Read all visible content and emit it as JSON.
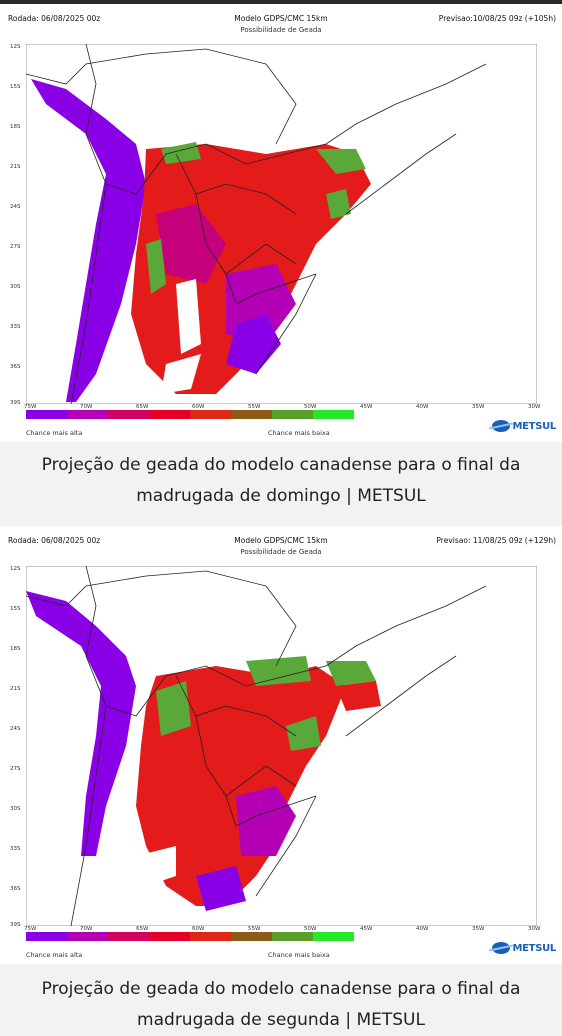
{
  "colors": {
    "legend": [
      "#8a00e6",
      "#b400b4",
      "#d2005f",
      "#e60028",
      "#dc2814",
      "#8c5a14",
      "#5aa028",
      "#28e628"
    ],
    "purple": "#8a00e6",
    "magenta": "#c4007a",
    "red": "#e41b1b",
    "green": "#5aa83a",
    "brand": "#1a5fb4"
  },
  "maps": [
    {
      "run": "Rodada: 06/08/2025 00z",
      "model": "Modelo GDPS/CMC 15km",
      "forecast": "Previsao:10/08/25 09z (+105h)",
      "subtitle": "Possibilidade de Geada",
      "y_ticks": [
        "12S",
        "15S",
        "18S",
        "21S",
        "24S",
        "27S",
        "30S",
        "33S",
        "36S",
        "39S"
      ],
      "x_ticks": [
        "75W",
        "70W",
        "65W",
        "60W",
        "55W",
        "50W",
        "45W",
        "40W",
        "35W",
        "30W"
      ],
      "legend_left": "Chance mais alta",
      "legend_right": "Chance mais baixa",
      "logo": "METSUL",
      "caption": "Projeção de geada do modelo canadense para o final da madrugada de domingo | METSUL"
    },
    {
      "run": "Rodada: 06/08/2025 00z",
      "model": "Modelo GDPS/CMC 15km",
      "forecast": "Previsao: 11/08/25 09z (+129h)",
      "subtitle": "Possibilidade de Geada",
      "y_ticks": [
        "12S",
        "15S",
        "18S",
        "21S",
        "24S",
        "27S",
        "30S",
        "33S",
        "36S",
        "39S"
      ],
      "x_ticks": [
        "75W",
        "70W",
        "65W",
        "60W",
        "55W",
        "50W",
        "45W",
        "40W",
        "35W",
        "30W"
      ],
      "legend_left": "Chance mais alta",
      "legend_right": "Chance mais baixa",
      "logo": "METSUL",
      "caption": "Projeção de geada do modelo canadense para o final da madrugada de segunda | METSUL"
    }
  ]
}
